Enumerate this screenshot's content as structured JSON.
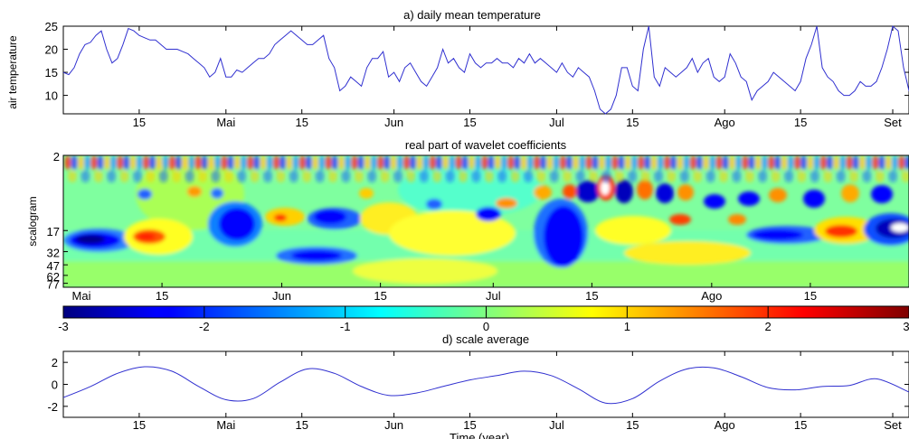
{
  "chart_data": [
    {
      "type": "line",
      "title": "a) daily mean temperature",
      "ylabel": "air temperature",
      "xlabel": "",
      "ylim": [
        6,
        25
      ],
      "yticks": [
        10,
        15,
        20,
        25
      ],
      "xlim": [
        0,
        156
      ],
      "xticks": [
        {
          "label": "15",
          "x": 14
        },
        {
          "label": "Mai",
          "x": 30
        },
        {
          "label": "15",
          "x": 44
        },
        {
          "label": "Jun",
          "x": 61
        },
        {
          "label": "15",
          "x": 75
        },
        {
          "label": "Jul",
          "x": 91
        },
        {
          "label": "15",
          "x": 105
        },
        {
          "label": "Ago",
          "x": 122
        },
        {
          "label": "15",
          "x": 136
        },
        {
          "label": "Set",
          "x": 153
        }
      ],
      "color": "#3030d0",
      "series": [
        {
          "values": [
            15,
            14.5,
            16,
            19,
            21,
            21.5,
            23,
            24,
            20,
            17,
            18,
            21,
            24.5,
            24,
            23,
            22.5,
            22,
            22,
            21,
            20,
            20,
            20,
            19.5,
            19,
            18,
            17,
            16,
            14,
            15,
            18,
            14,
            14,
            15.5,
            15,
            16,
            17,
            18,
            18,
            19,
            21,
            22,
            23,
            24,
            23,
            22,
            21,
            21,
            22,
            23,
            18,
            16,
            11,
            12,
            14,
            13,
            12,
            16,
            18,
            18,
            19.5,
            14,
            15,
            13,
            16,
            17,
            15,
            13,
            12,
            14,
            16,
            20,
            17,
            18,
            16,
            15,
            19,
            17,
            16,
            17,
            17,
            18,
            17,
            17,
            16,
            18,
            17,
            19,
            17,
            18,
            17,
            16,
            15,
            17,
            15,
            14,
            16,
            15,
            14,
            11,
            7,
            6,
            7,
            10,
            16,
            16,
            12,
            11,
            20,
            25,
            14,
            12,
            16,
            15,
            14,
            15,
            16,
            18,
            15,
            17,
            18,
            14,
            13,
            14,
            19,
            17,
            14,
            13,
            9,
            11,
            12,
            13,
            15,
            14,
            13,
            12,
            11,
            13,
            18,
            21,
            25,
            16,
            14,
            13,
            11,
            10,
            10,
            11,
            13,
            12,
            12,
            13,
            16,
            20,
            25,
            24,
            16,
            11,
            10,
            14,
            12
          ]
        }
      ]
    },
    {
      "type": "heatmap",
      "title": "real part of wavelet coefficients",
      "ylabel": "scalogram",
      "yticks": [
        "2",
        "17",
        "32",
        "47",
        "62",
        "77"
      ],
      "xticks": [
        {
          "label": "Mai",
          "x": 0
        },
        {
          "label": "15",
          "x": 14
        },
        {
          "label": "Jun",
          "x": 31
        },
        {
          "label": "15",
          "x": 45
        },
        {
          "label": "Jul",
          "x": 61
        },
        {
          "label": "15",
          "x": 75
        },
        {
          "label": "Ago",
          "x": 92
        },
        {
          "label": "15",
          "x": 106
        }
      ],
      "colorbar": {
        "min": -3,
        "max": 3,
        "ticks": [
          "-3",
          "-2",
          "-1",
          "0",
          "1",
          "2",
          "3"
        ]
      }
    },
    {
      "type": "line",
      "title": "d) scale average",
      "xlabel": "Time (year)",
      "ylabel": "",
      "ylim": [
        -3,
        3
      ],
      "yticks": [
        -2,
        0,
        2
      ],
      "xlim": [
        0,
        156
      ],
      "xticks": [
        {
          "label": "15",
          "x": 14
        },
        {
          "label": "Mai",
          "x": 30
        },
        {
          "label": "15",
          "x": 44
        },
        {
          "label": "Jun",
          "x": 61
        },
        {
          "label": "15",
          "x": 75
        },
        {
          "label": "Jul",
          "x": 91
        },
        {
          "label": "15",
          "x": 105
        },
        {
          "label": "Ago",
          "x": 122
        },
        {
          "label": "15",
          "x": 136
        },
        {
          "label": "Set",
          "x": 153
        }
      ],
      "color": "#3030d0",
      "series": [
        {
          "x": [
            0,
            5,
            10,
            15,
            20,
            25,
            30,
            35,
            40,
            45,
            50,
            55,
            60,
            65,
            70,
            75,
            80,
            85,
            90,
            95,
            100,
            105,
            110,
            115,
            120,
            125,
            130,
            135,
            140,
            145,
            150,
            156
          ],
          "values": [
            -1.2,
            -0.2,
            1.0,
            1.6,
            1.2,
            -0.2,
            -1.4,
            -1.3,
            0.2,
            1.4,
            1.0,
            -0.2,
            -1.0,
            -0.8,
            -0.2,
            0.4,
            0.8,
            1.2,
            0.8,
            -0.4,
            -1.7,
            -1.3,
            0.3,
            1.4,
            1.5,
            0.7,
            -0.3,
            -0.5,
            -0.2,
            -0.1,
            0.5,
            -0.7
          ]
        }
      ]
    }
  ]
}
